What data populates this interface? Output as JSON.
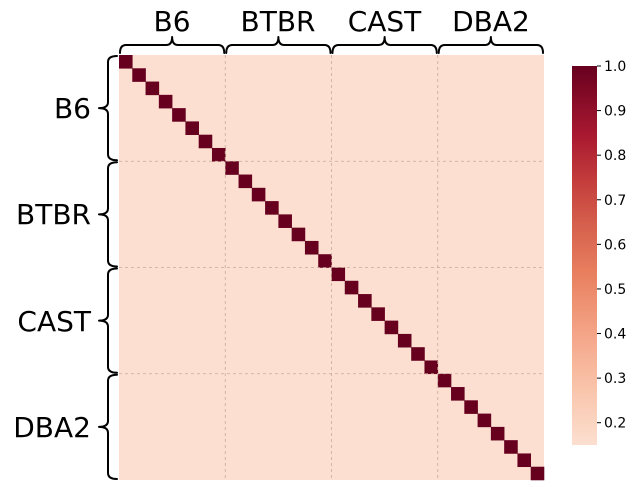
{
  "chart_data": {
    "type": "heatmap",
    "size": 32,
    "groups": [
      "B6",
      "BTBR",
      "CAST",
      "DBA2"
    ],
    "group_size": 8,
    "values": {
      "diagonal": 1.0,
      "off_diagonal": 0.15
    },
    "colorbar": {
      "min": 0.15,
      "max": 1.0,
      "ticks": [
        "1.0",
        "0.9",
        "0.8",
        "0.7",
        "0.6",
        "0.5",
        "0.4",
        "0.3",
        "0.2"
      ],
      "tick_values": [
        1.0,
        0.9,
        0.8,
        0.7,
        0.6,
        0.5,
        0.4,
        0.3,
        0.2
      ],
      "colormap": "Reds (light peach to dark red)"
    },
    "grid": true,
    "colors": {
      "low": "#fcdfd0",
      "high": "#67001f"
    }
  }
}
